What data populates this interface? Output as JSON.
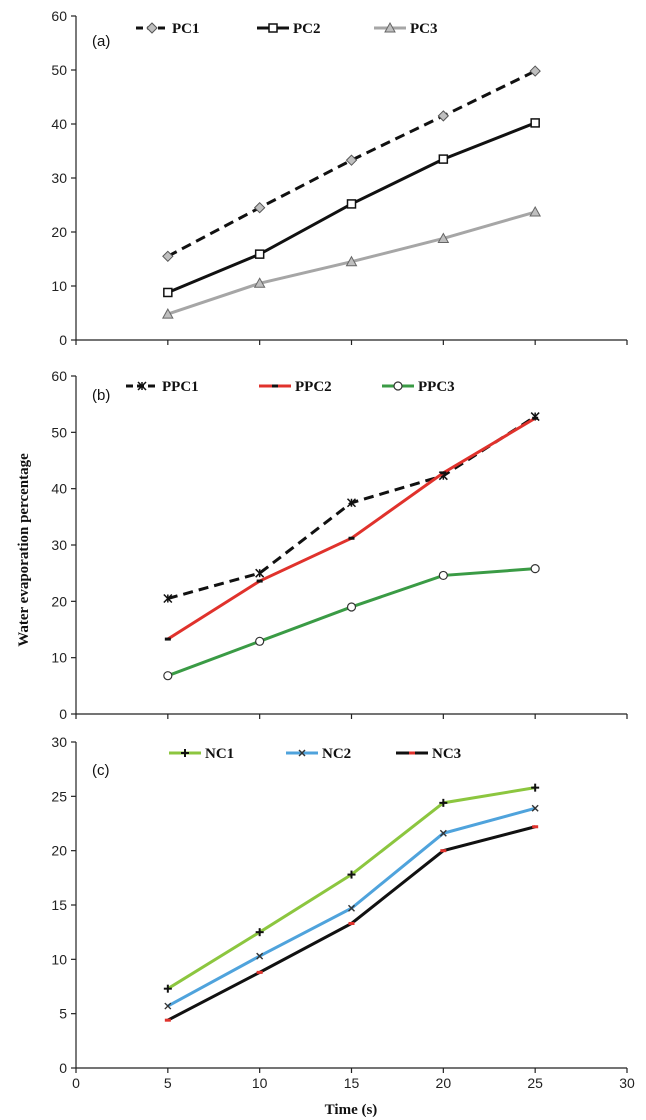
{
  "figure": {
    "ylabel": "Water evaporation percentage",
    "xlabel": "Time (s)"
  },
  "chart_data": [
    {
      "panel_label": "(a)",
      "type": "line",
      "x": [
        5,
        10,
        15,
        20,
        25
      ],
      "ylim": [
        0,
        60
      ],
      "yticks": [
        0,
        10,
        20,
        30,
        40,
        50,
        60
      ],
      "series": [
        {
          "name": "PC1",
          "values": [
            15.5,
            24.5,
            33.3,
            41.5,
            49.8
          ],
          "color": "#111111",
          "dash": "dashed",
          "marker": "diamond",
          "marker_fill": "#bfbfbf"
        },
        {
          "name": "PC2",
          "values": [
            8.8,
            15.9,
            25.2,
            33.5,
            40.2
          ],
          "color": "#111111",
          "dash": "solid",
          "marker": "square",
          "marker_fill": "#ffffff"
        },
        {
          "name": "PC3",
          "values": [
            4.8,
            10.5,
            14.5,
            18.8,
            23.7
          ],
          "color": "#a6a6a6",
          "dash": "solid",
          "marker": "triangle",
          "marker_fill": "#bfbfbf"
        }
      ]
    },
    {
      "panel_label": "(b)",
      "type": "line",
      "x": [
        5,
        10,
        15,
        20,
        25
      ],
      "ylim": [
        0,
        60
      ],
      "yticks": [
        0,
        10,
        20,
        30,
        40,
        50,
        60
      ],
      "series": [
        {
          "name": "PPC1",
          "values": [
            20.5,
            25.0,
            37.5,
            42.3,
            52.8
          ],
          "color": "#111111",
          "dash": "dashed",
          "marker": "star",
          "marker_fill": "#111111"
        },
        {
          "name": "PPC2",
          "values": [
            13.3,
            23.6,
            31.2,
            42.8,
            52.5
          ],
          "color": "#e0322c",
          "dash": "solid",
          "marker": "dash",
          "marker_fill": "#111111"
        },
        {
          "name": "PPC3",
          "values": [
            6.8,
            12.9,
            19.0,
            24.6,
            25.8
          ],
          "color": "#3a9b45",
          "dash": "solid",
          "marker": "circle",
          "marker_fill": "#ffffff"
        }
      ]
    },
    {
      "panel_label": "(c)",
      "type": "line",
      "x": [
        5,
        10,
        15,
        20,
        25
      ],
      "xlim": [
        0,
        30
      ],
      "xticks": [
        0,
        5,
        10,
        15,
        20,
        25,
        30
      ],
      "ylim": [
        0,
        30
      ],
      "yticks": [
        0,
        5,
        10,
        15,
        20,
        25,
        30
      ],
      "series": [
        {
          "name": "NC1",
          "values": [
            7.3,
            12.5,
            17.8,
            24.4,
            25.8
          ],
          "color": "#8cc63f",
          "dash": "solid",
          "marker": "plus",
          "marker_fill": "#111111"
        },
        {
          "name": "NC2",
          "values": [
            5.7,
            10.3,
            14.7,
            21.6,
            23.9
          ],
          "color": "#4fa3dc",
          "dash": "solid",
          "marker": "x",
          "marker_fill": "#111111"
        },
        {
          "name": "NC3",
          "values": [
            4.4,
            8.8,
            13.3,
            20.0,
            22.2
          ],
          "color": "#111111",
          "dash": "solid",
          "marker": "dash",
          "marker_fill": "#e0322c"
        }
      ]
    }
  ]
}
